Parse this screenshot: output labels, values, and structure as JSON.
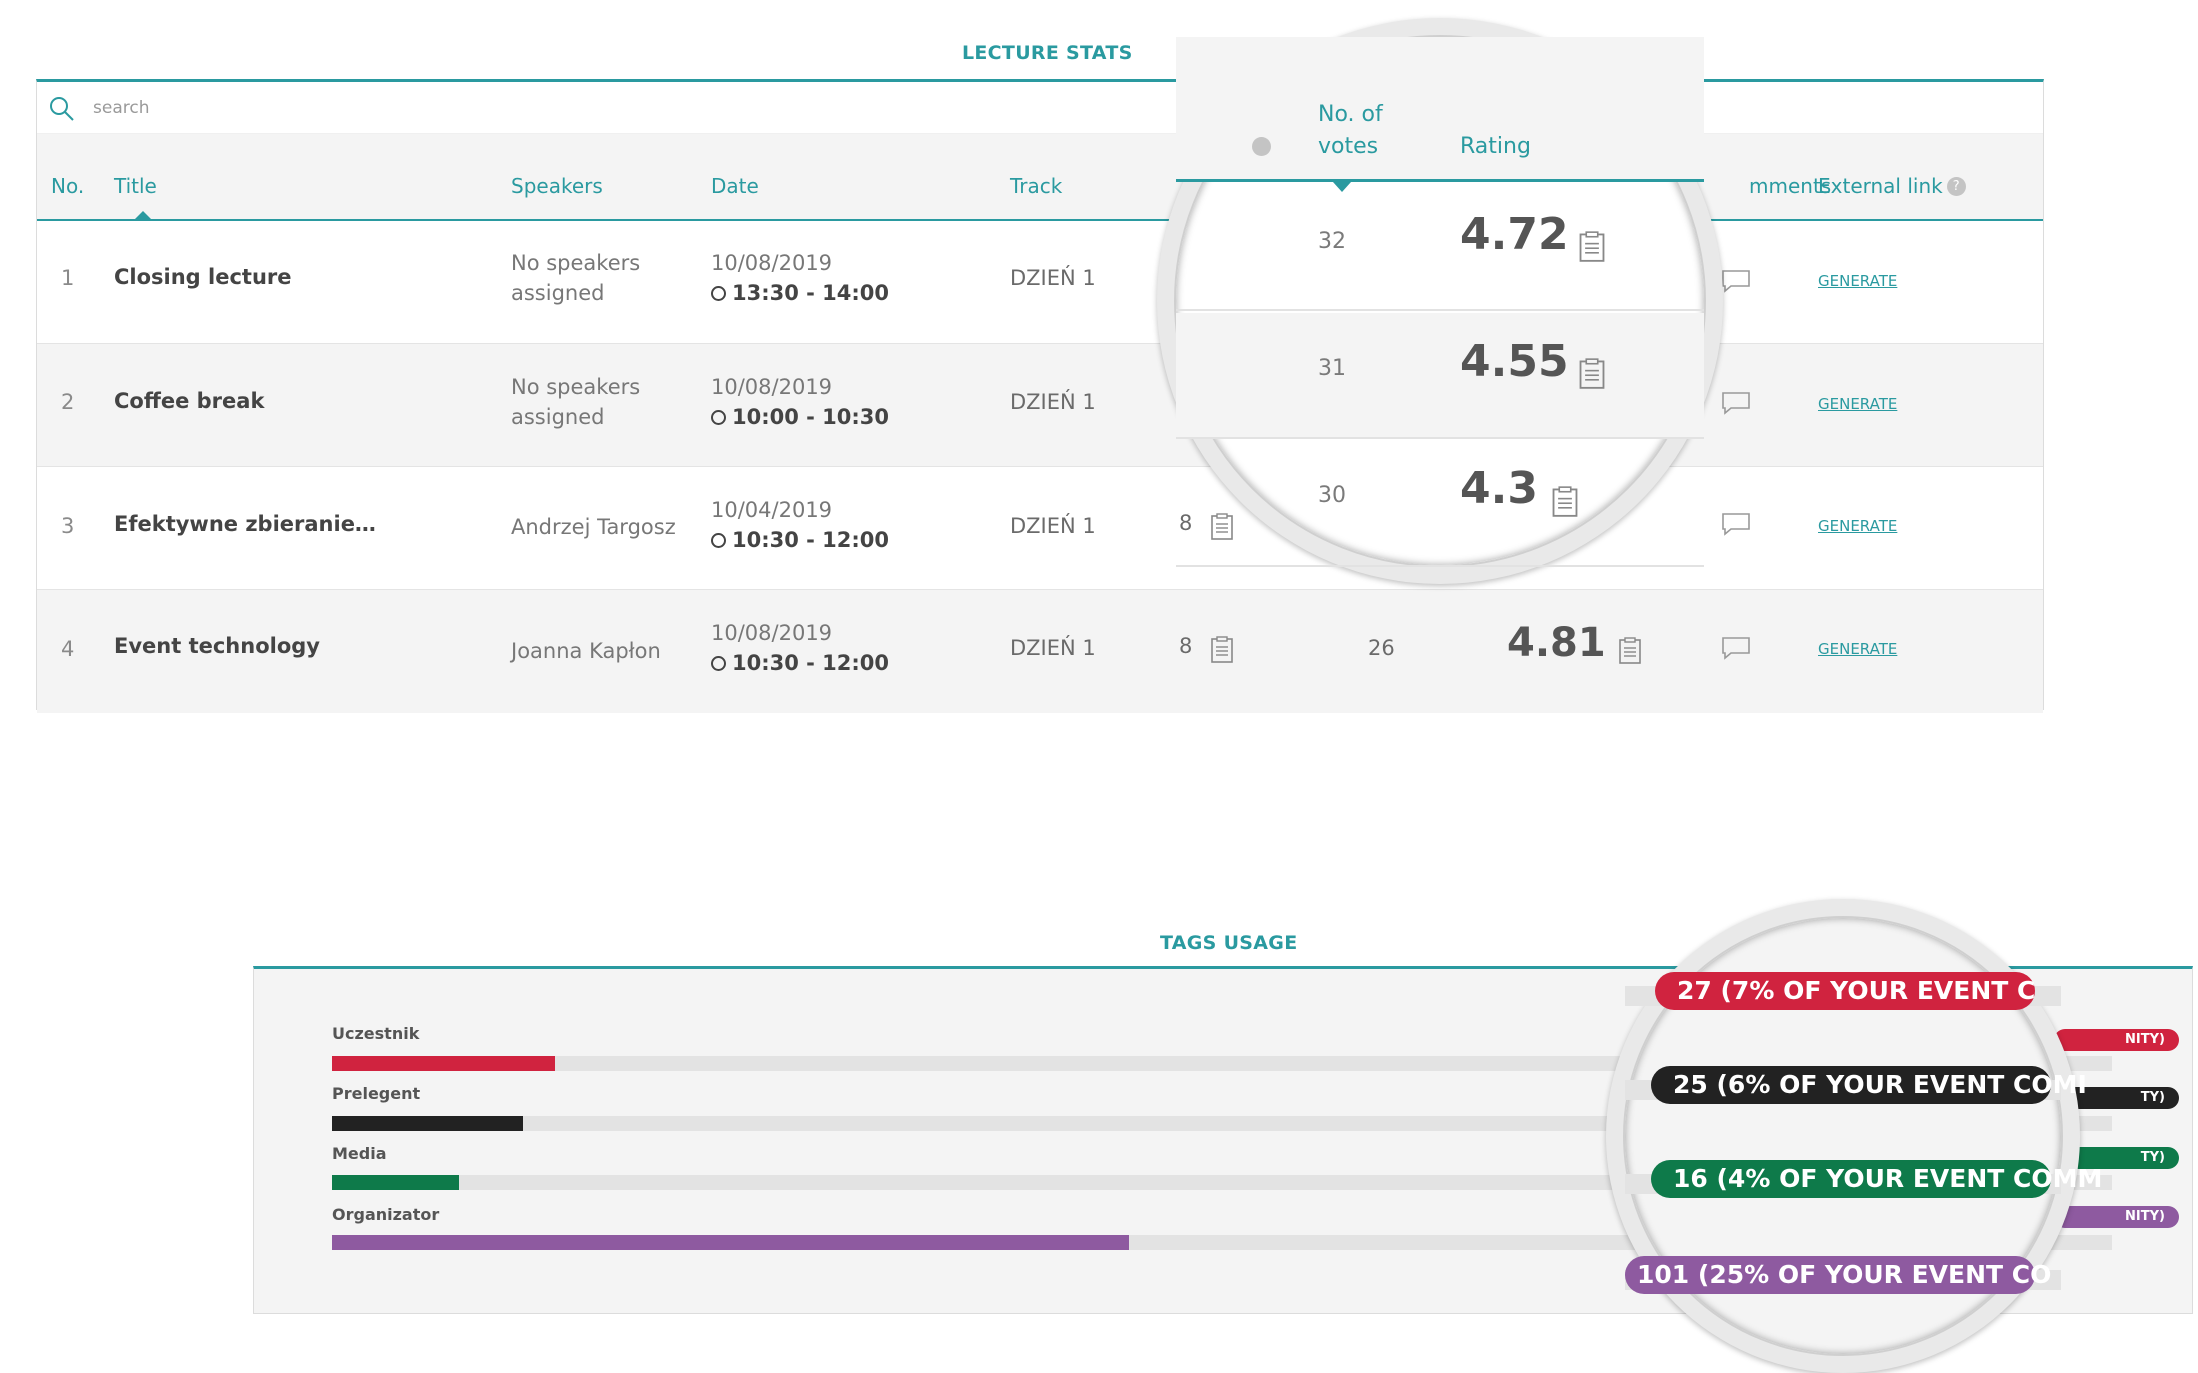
{
  "lecture_stats": {
    "title": "LECTURE STATS",
    "search_placeholder": "search",
    "columns": {
      "no": "No.",
      "title": "Title",
      "speakers": "Speakers",
      "date": "Date",
      "track": "Track",
      "comments_partial": "mments",
      "external_link": "External link",
      "help": "?"
    },
    "rows": [
      {
        "no": "1",
        "title": "Closing lecture",
        "speakers": "No speakers assigned",
        "date": "10/08/2019",
        "time": "13:30 - 14:00",
        "track": "DZIEŃ 1",
        "link": "GENERATE"
      },
      {
        "no": "2",
        "title": "Coffee break",
        "speakers": "No speakers assigned",
        "date": "10/08/2019",
        "time": "10:00 - 10:30",
        "track": "DZIEŃ 1",
        "link": "GENERATE"
      },
      {
        "no": "3",
        "title": "Efektywne zbieranie…",
        "speakers": "Andrzej Targosz",
        "date": "10/04/2019",
        "time": "10:30 - 12:00",
        "track": "DZIEŃ 1",
        "questions": "8",
        "link": "GENERATE"
      },
      {
        "no": "4",
        "title": "Event technology",
        "speakers": "Joanna Kapłon",
        "date": "10/08/2019",
        "time": "10:30 - 12:00",
        "track": "DZIEŃ 1",
        "questions": "8",
        "votes": "26",
        "rating": "4.81",
        "link": "GENERATE"
      }
    ],
    "magnifier": {
      "votes_header_line1": "No. of",
      "votes_header_line2": "votes",
      "rating_header": "Rating",
      "rows": [
        {
          "votes": "32",
          "rating": "4.72"
        },
        {
          "votes": "31",
          "rating": "4.55"
        },
        {
          "votes": "30",
          "rating": "4.3"
        }
      ]
    }
  },
  "tags_usage": {
    "title": "TAGS USAGE",
    "tags": [
      {
        "label": "Uczestnik",
        "fraction": 0.07,
        "color": "#d0233f",
        "pill_tail": "NITY)",
        "zoom_text": "27 (7% OF YOUR EVENT C"
      },
      {
        "label": "Prelegent",
        "fraction": 0.06,
        "color": "#222222",
        "pill_tail": "TY)",
        "zoom_text": "25 (6% OF YOUR EVENT COMI"
      },
      {
        "label": "Media",
        "fraction": 0.04,
        "color": "#0e7a4a",
        "pill_tail": "TY)",
        "zoom_text": "16 (4% OF YOUR EVENT COMM"
      },
      {
        "label": "Organizator",
        "fraction": 0.25,
        "color": "#8e5aa0",
        "pill_tail": "NITY)",
        "zoom_text": "101 (25% OF YOUR EVENT CO"
      }
    ]
  },
  "colors": {
    "accent": "#2a9aa0"
  }
}
